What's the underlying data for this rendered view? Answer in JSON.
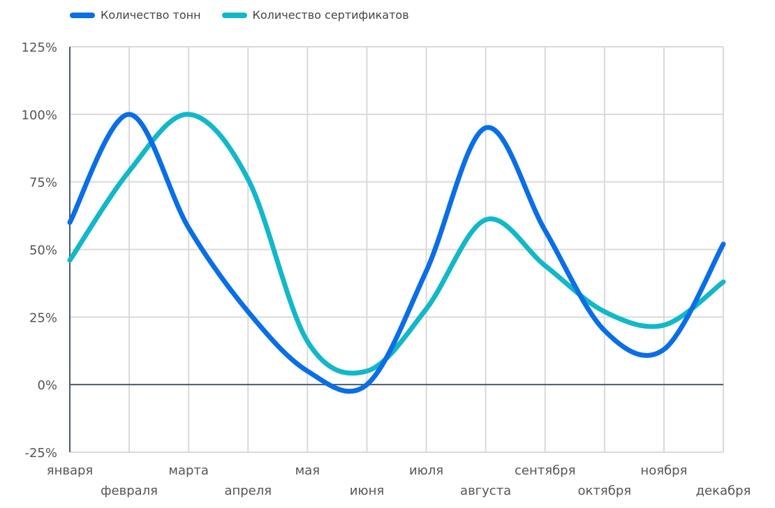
{
  "chart_data": {
    "type": "line",
    "categories": [
      "января",
      "февраля",
      "марта",
      "апреля",
      "мая",
      "июня",
      "июля",
      "августа",
      "сентября",
      "октября",
      "ноября",
      "декабря"
    ],
    "series": [
      {
        "name": "Количество тонн",
        "color": "#0A6EE6",
        "values": [
          60,
          100,
          58,
          27,
          5,
          0,
          42,
          95,
          57,
          20,
          13,
          52
        ]
      },
      {
        "name": "Количество сертификатов",
        "color": "#12B8C8",
        "values": [
          46,
          79,
          100,
          76,
          16,
          5,
          28,
          61,
          44,
          27,
          22,
          38
        ]
      }
    ],
    "yticks": [
      "125%",
      "100%",
      "75%",
      "50%",
      "25%",
      "0%",
      "-25%"
    ],
    "ylim": [
      -25,
      125
    ],
    "grid": true,
    "legend_position": "top-left"
  }
}
